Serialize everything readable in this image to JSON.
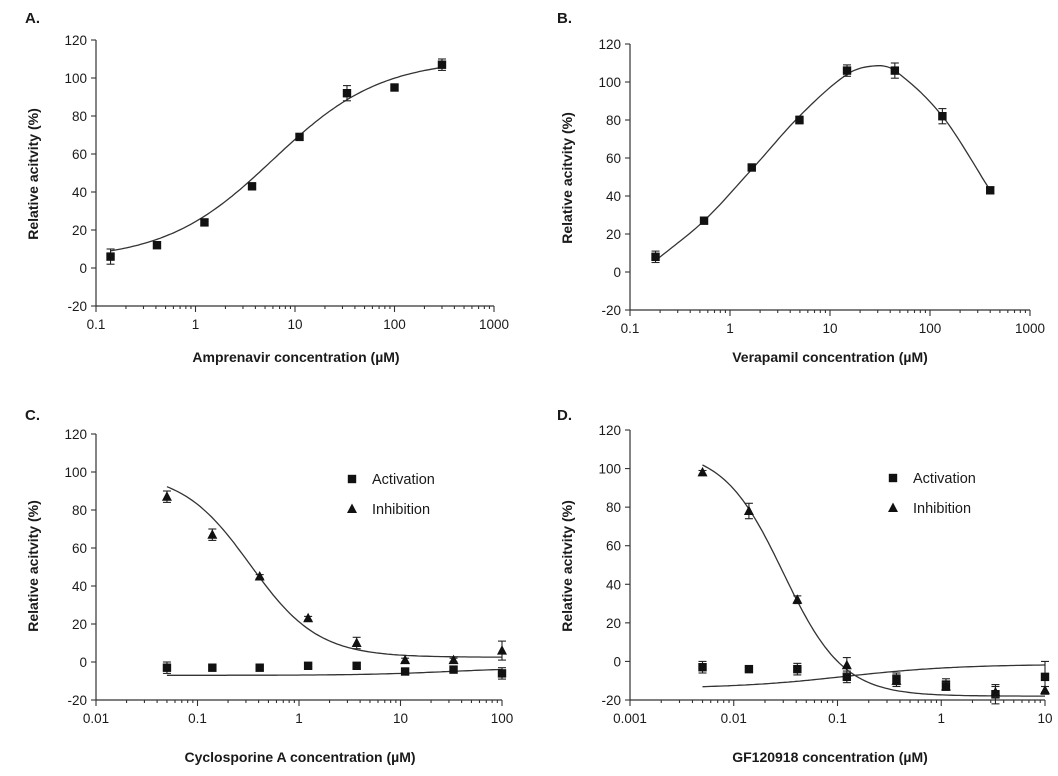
{
  "chart_data": [
    {
      "type": "scatter",
      "panel_label": "A.",
      "xlabel": "Amprenavir concentration (µM)",
      "ylabel": "Relative acitvity (%)",
      "xscale": "log",
      "xlim": [
        0.1,
        1000
      ],
      "ylim": [
        -20,
        120
      ],
      "xticks": [
        0.1,
        1,
        10,
        100,
        1000
      ],
      "xtick_labels": [
        "0.1",
        "1",
        "10",
        "100",
        "1000"
      ],
      "yticks": [
        -20,
        0,
        20,
        40,
        60,
        80,
        100,
        120
      ],
      "ytick_labels": [
        "-20",
        "0",
        "20",
        "40",
        "60",
        "80",
        "100",
        "120"
      ],
      "legend": [],
      "series": [
        {
          "marker": "square",
          "x": [
            0.14,
            0.41,
            1.23,
            3.7,
            11.1,
            33.3,
            100,
            300
          ],
          "y": [
            6,
            12,
            24,
            43,
            69,
            92,
            95,
            107
          ],
          "err": [
            4,
            1.5,
            1.5,
            1.5,
            1.5,
            4,
            1.5,
            3
          ],
          "fit": {
            "model": "sigmoid",
            "bottom": 4,
            "top": 110,
            "ec50": 6,
            "hill": 0.8
          }
        }
      ]
    },
    {
      "type": "scatter",
      "panel_label": "B.",
      "xlabel": "Verapamil concentration (µM)",
      "ylabel": "Relative acitvity (%)",
      "xscale": "log",
      "xlim": [
        0.1,
        1000
      ],
      "ylim": [
        -20,
        120
      ],
      "xticks": [
        0.1,
        1,
        10,
        100,
        1000
      ],
      "xtick_labels": [
        "0.1",
        "1",
        "10",
        "100",
        "1000"
      ],
      "yticks": [
        -20,
        0,
        20,
        40,
        60,
        80,
        100,
        120
      ],
      "ytick_labels": [
        "-20",
        "0",
        "20",
        "40",
        "60",
        "80",
        "100",
        "120"
      ],
      "legend": [],
      "series": [
        {
          "marker": "square",
          "x": [
            0.18,
            0.55,
            1.65,
            4.95,
            14.8,
            44.5,
            133,
            400
          ],
          "y": [
            8,
            27,
            55,
            80,
            106,
            106,
            82,
            43
          ],
          "err": [
            3,
            1.5,
            1.5,
            2,
            3,
            4,
            4,
            1.5
          ],
          "fit": {
            "model": "bell",
            "peak_x": 28,
            "peak_y": 108.5,
            "points": [
              [
                0.18,
                6
              ],
              [
                0.55,
                27
              ],
              [
                1.65,
                54
              ],
              [
                4.95,
                82
              ],
              [
                14.8,
                104
              ],
              [
                28,
                108.5
              ],
              [
                44.5,
                106
              ],
              [
                133,
                82
              ],
              [
                400,
                43
              ]
            ]
          }
        }
      ]
    },
    {
      "type": "scatter",
      "panel_label": "C.",
      "xlabel": "Cyclosporine A concentration (µM)",
      "ylabel": "Relative acitvity (%)",
      "xscale": "log",
      "xlim": [
        0.01,
        100
      ],
      "ylim": [
        -20,
        120
      ],
      "xticks": [
        0.01,
        0.1,
        1,
        10,
        100
      ],
      "xtick_labels": [
        "0.01",
        "0.1",
        "1",
        "10",
        "100"
      ],
      "yticks": [
        -20,
        0,
        20,
        40,
        60,
        80,
        100,
        120
      ],
      "ytick_labels": [
        "-20",
        "0",
        "20",
        "40",
        "60",
        "80",
        "100",
        "120"
      ],
      "legend": [
        {
          "name": "Activation",
          "marker": "square"
        },
        {
          "name": "Inhibition",
          "marker": "triangle"
        }
      ],
      "series": [
        {
          "name": "Activation",
          "marker": "square",
          "x": [
            0.05,
            0.14,
            0.41,
            1.23,
            3.7,
            11.1,
            33.3,
            100
          ],
          "y": [
            -3,
            -3,
            -3,
            -2,
            -2,
            -5,
            -4,
            -6
          ],
          "err": [
            3,
            1,
            1,
            1,
            1.5,
            1.5,
            1.5,
            3
          ],
          "fit": {
            "model": "sigmoid",
            "bottom": -7,
            "top": -3,
            "ec50": 30,
            "hill": 1
          }
        },
        {
          "name": "Inhibition",
          "marker": "triangle",
          "x": [
            0.05,
            0.14,
            0.41,
            1.23,
            3.7,
            11.1,
            33.3,
            100
          ],
          "y": [
            87,
            67,
            45,
            23,
            10,
            1,
            1,
            6
          ],
          "err": [
            3,
            3,
            1,
            1,
            3,
            1,
            1,
            5
          ],
          "fit": {
            "model": "sigmoid",
            "bottom": 2.5,
            "top": 100,
            "ec50": 0.33,
            "hill": -1.3
          }
        }
      ]
    },
    {
      "type": "scatter",
      "panel_label": "D.",
      "xlabel": "GF120918 concentration (µM)",
      "ylabel": "Relative acitvity (%)",
      "xscale": "log",
      "xlim": [
        0.001,
        10
      ],
      "ylim": [
        -20,
        120
      ],
      "xticks": [
        0.001,
        0.01,
        0.1,
        1,
        10
      ],
      "xtick_labels": [
        "0.001",
        "0.01",
        "0.1",
        "1",
        "10"
      ],
      "yticks": [
        -20,
        0,
        20,
        40,
        60,
        80,
        100,
        120
      ],
      "ytick_labels": [
        "-20",
        "0",
        "20",
        "40",
        "60",
        "80",
        "100",
        "120"
      ],
      "legend": [
        {
          "name": "Activation",
          "marker": "square"
        },
        {
          "name": "Inhibition",
          "marker": "triangle"
        }
      ],
      "series": [
        {
          "name": "Activation",
          "marker": "square",
          "x": [
            0.005,
            0.014,
            0.041,
            0.123,
            0.37,
            1.11,
            3.33,
            10
          ],
          "y": [
            -3,
            -4,
            -4,
            -8,
            -9,
            -12,
            -17,
            -8
          ],
          "err": [
            3,
            1,
            3,
            3,
            3,
            3,
            5,
            8
          ],
          "fit": {
            "model": "sigmoid",
            "bottom": -14,
            "top": -1.5,
            "ec50": 0.12,
            "hill": 0.8
          }
        },
        {
          "name": "Inhibition",
          "marker": "triangle",
          "x": [
            0.005,
            0.014,
            0.041,
            0.123,
            0.37,
            1.11,
            3.33,
            10
          ],
          "y": [
            98,
            78,
            32,
            -2,
            -10,
            -13,
            -16,
            -15
          ],
          "err": [
            1,
            4,
            2,
            4,
            3,
            2,
            3,
            2
          ],
          "fit": {
            "model": "sigmoid",
            "bottom": -18,
            "top": 110,
            "ec50": 0.03,
            "hill": -1.5
          }
        }
      ]
    }
  ]
}
